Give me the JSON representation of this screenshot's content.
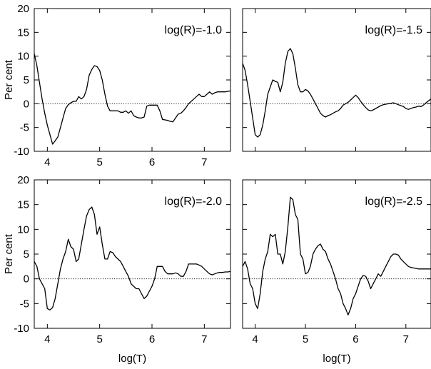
{
  "chart_data": [
    {
      "type": "line",
      "annotation": "log(R)=-1.0",
      "xlabel": "",
      "ylabel": "Per cent",
      "xlim": [
        3.75,
        7.5
      ],
      "ylim": [
        -10,
        20
      ],
      "xticks": [
        "4",
        "5",
        "6",
        "7"
      ],
      "yticks": [
        "-10",
        "-5",
        "0",
        "5",
        "10",
        "15",
        "20"
      ],
      "zero_line": "dotted",
      "x": [
        3.75,
        3.8,
        3.85,
        3.9,
        3.95,
        4.0,
        4.05,
        4.1,
        4.15,
        4.2,
        4.25,
        4.3,
        4.35,
        4.4,
        4.45,
        4.5,
        4.55,
        4.6,
        4.65,
        4.7,
        4.75,
        4.8,
        4.85,
        4.9,
        4.95,
        5.0,
        5.05,
        5.1,
        5.15,
        5.2,
        5.25,
        5.3,
        5.35,
        5.4,
        5.45,
        5.5,
        5.55,
        5.6,
        5.65,
        5.7,
        5.75,
        5.8,
        5.85,
        5.9,
        5.95,
        6.0,
        6.05,
        6.1,
        6.15,
        6.2,
        6.25,
        6.3,
        6.35,
        6.4,
        6.45,
        6.5,
        6.55,
        6.6,
        6.65,
        6.7,
        6.75,
        6.8,
        6.85,
        6.9,
        6.95,
        7.0,
        7.05,
        7.1,
        7.15,
        7.2,
        7.25,
        7.3,
        7.35,
        7.4,
        7.45,
        7.5
      ],
      "y": [
        10.5,
        8,
        4.5,
        1,
        -2,
        -4.5,
        -6.5,
        -8.5,
        -7.8,
        -7,
        -5,
        -3,
        -1,
        -0.2,
        0.2,
        0.5,
        0.5,
        1.5,
        1,
        1.5,
        3,
        6,
        7.2,
        8,
        7.8,
        7,
        5,
        2,
        -0.5,
        -1.5,
        -1.5,
        -1.5,
        -1.5,
        -1.8,
        -1.8,
        -1.5,
        -2,
        -1.5,
        -2.5,
        -2.8,
        -3,
        -3,
        -2.8,
        -0.5,
        -0.3,
        -0.3,
        -0.3,
        -0.3,
        -1.5,
        -3.3,
        -3.4,
        -3.5,
        -3.7,
        -3.8,
        -3,
        -2.2,
        -2,
        -1.5,
        -0.8,
        0,
        0.5,
        1,
        1.5,
        2,
        1.5,
        1.5,
        2,
        2.5,
        2,
        2.3,
        2.5,
        2.5,
        2.5,
        2.5,
        2.6,
        2.7
      ]
    },
    {
      "type": "line",
      "annotation": "log(R)=-1.5",
      "xlabel": "",
      "ylabel": "",
      "xlim": [
        3.75,
        7.5
      ],
      "ylim": [
        -10,
        20
      ],
      "xticks": [],
      "yticks": [],
      "zero_line": "dotted",
      "x": [
        3.75,
        3.8,
        3.85,
        3.9,
        3.95,
        4.0,
        4.05,
        4.1,
        4.15,
        4.2,
        4.25,
        4.3,
        4.35,
        4.4,
        4.45,
        4.5,
        4.55,
        4.6,
        4.65,
        4.7,
        4.75,
        4.8,
        4.85,
        4.9,
        4.95,
        5.0,
        5.05,
        5.1,
        5.15,
        5.2,
        5.25,
        5.3,
        5.35,
        5.4,
        5.45,
        5.5,
        5.55,
        5.6,
        5.65,
        5.7,
        5.75,
        5.8,
        5.85,
        5.9,
        5.95,
        6.0,
        6.05,
        6.1,
        6.15,
        6.2,
        6.25,
        6.3,
        6.35,
        6.4,
        6.45,
        6.5,
        6.55,
        6.6,
        6.65,
        6.7,
        6.75,
        6.8,
        6.85,
        6.9,
        6.95,
        7.0,
        7.05,
        7.1,
        7.15,
        7.2,
        7.25,
        7.3,
        7.35,
        7.4,
        7.45,
        7.5
      ],
      "y": [
        8.5,
        7,
        4,
        0.5,
        -3,
        -6.5,
        -7,
        -6.5,
        -4.5,
        -1.5,
        2,
        3.5,
        5,
        4.7,
        4.5,
        2.5,
        4.5,
        8.5,
        11,
        11.6,
        10.5,
        7.5,
        4,
        2.5,
        2.5,
        3,
        2.7,
        2,
        1,
        0,
        -1,
        -2,
        -2.5,
        -2.8,
        -2.5,
        -2.3,
        -2,
        -1.7,
        -1.5,
        -1,
        -0.3,
        0,
        0.3,
        0.8,
        1.3,
        1.8,
        1.3,
        0.5,
        -0.2,
        -0.8,
        -1.3,
        -1.5,
        -1.3,
        -1,
        -0.7,
        -0.4,
        -0.2,
        -0.1,
        0,
        0.1,
        0.2,
        0,
        -0.2,
        -0.4,
        -0.6,
        -1,
        -1.2,
        -1,
        -0.8,
        -0.7,
        -0.5,
        -0.6,
        -0.3,
        0.2,
        0.6,
        1
      ]
    },
    {
      "type": "line",
      "annotation": "log(R)=-2.0",
      "xlabel": "log(T)",
      "ylabel": "Per cent",
      "xlim": [
        3.75,
        7.5
      ],
      "ylim": [
        -10,
        20
      ],
      "xticks": [
        "4",
        "5",
        "6",
        "7"
      ],
      "yticks": [
        "-10",
        "-5",
        "0",
        "5",
        "10",
        "15",
        "20"
      ],
      "zero_line": "dotted",
      "x": [
        3.75,
        3.8,
        3.85,
        3.9,
        3.95,
        4.0,
        4.05,
        4.1,
        4.15,
        4.2,
        4.25,
        4.3,
        4.35,
        4.4,
        4.45,
        4.5,
        4.55,
        4.6,
        4.65,
        4.7,
        4.75,
        4.8,
        4.85,
        4.9,
        4.95,
        5.0,
        5.05,
        5.1,
        5.15,
        5.2,
        5.25,
        5.3,
        5.35,
        5.4,
        5.45,
        5.5,
        5.55,
        5.6,
        5.65,
        5.7,
        5.75,
        5.8,
        5.85,
        5.9,
        5.95,
        6.0,
        6.05,
        6.1,
        6.15,
        6.2,
        6.25,
        6.3,
        6.35,
        6.4,
        6.45,
        6.5,
        6.55,
        6.6,
        6.65,
        6.7,
        6.75,
        6.8,
        6.85,
        6.9,
        6.95,
        7.0,
        7.05,
        7.1,
        7.15,
        7.2,
        7.25,
        7.3,
        7.35,
        7.4,
        7.45,
        7.5
      ],
      "y": [
        3.5,
        2.5,
        0,
        -1,
        -2,
        -6,
        -6.3,
        -5.8,
        -4,
        -1,
        2,
        4,
        5.5,
        8,
        6.5,
        6,
        3.5,
        4,
        7,
        10,
        12.7,
        14,
        14.5,
        13,
        9,
        10.5,
        7,
        4,
        4,
        5.5,
        5.3,
        4.5,
        4,
        3.5,
        2.5,
        1.5,
        0.5,
        -1,
        -1.5,
        -2,
        -2,
        -3,
        -4,
        -3.5,
        -2.5,
        -1.5,
        0,
        2.5,
        2.5,
        2.5,
        1.5,
        1,
        1,
        1,
        1.2,
        1,
        0.5,
        0.5,
        1.5,
        3,
        3,
        3,
        3,
        2.8,
        2.5,
        2,
        1.5,
        1,
        0.8,
        1,
        1.2,
        1.3,
        1.3,
        1.4,
        1.4,
        1.5
      ]
    },
    {
      "type": "line",
      "annotation": "log(R)=-2.5",
      "xlabel": "log(T)",
      "ylabel": "",
      "xlim": [
        3.75,
        7.5
      ],
      "ylim": [
        -10,
        20
      ],
      "xticks": [
        "4",
        "5",
        "6",
        "7"
      ],
      "yticks": [],
      "zero_line": "dotted",
      "x": [
        3.75,
        3.8,
        3.85,
        3.9,
        3.95,
        4.0,
        4.05,
        4.1,
        4.15,
        4.2,
        4.25,
        4.3,
        4.35,
        4.4,
        4.45,
        4.5,
        4.55,
        4.6,
        4.65,
        4.7,
        4.75,
        4.8,
        4.85,
        4.9,
        4.95,
        5.0,
        5.05,
        5.1,
        5.15,
        5.2,
        5.25,
        5.3,
        5.35,
        5.4,
        5.45,
        5.5,
        5.55,
        5.6,
        5.65,
        5.7,
        5.75,
        5.8,
        5.85,
        5.9,
        5.95,
        6.0,
        6.05,
        6.1,
        6.15,
        6.2,
        6.25,
        6.3,
        6.35,
        6.4,
        6.45,
        6.5,
        6.55,
        6.6,
        6.65,
        6.7,
        6.75,
        6.8,
        6.85,
        6.9,
        6.95,
        7.0,
        7.05,
        7.1,
        7.15,
        7.2,
        7.25,
        7.3,
        7.35,
        7.4,
        7.45,
        7.5
      ],
      "y": [
        2.5,
        3.5,
        2,
        -1,
        -2,
        -5,
        -6,
        -3,
        1.5,
        4,
        5.5,
        9,
        8.5,
        9,
        5,
        5,
        3,
        5.5,
        10.5,
        16.5,
        16,
        13,
        12,
        5,
        4,
        1,
        1.3,
        2.5,
        5,
        6,
        6.7,
        7,
        6,
        5.5,
        4,
        3,
        1.5,
        0,
        -2,
        -3,
        -5,
        -6,
        -7.3,
        -6,
        -4,
        -3,
        -1.5,
        0,
        0.7,
        0.5,
        -0.5,
        -2,
        -1,
        0,
        1,
        0.5,
        1.5,
        2.5,
        3.5,
        4.5,
        5,
        5,
        4.8,
        4,
        3.5,
        3,
        2.5,
        2.3,
        2.2,
        2.1,
        2,
        2,
        2,
        2,
        2,
        2
      ]
    }
  ]
}
